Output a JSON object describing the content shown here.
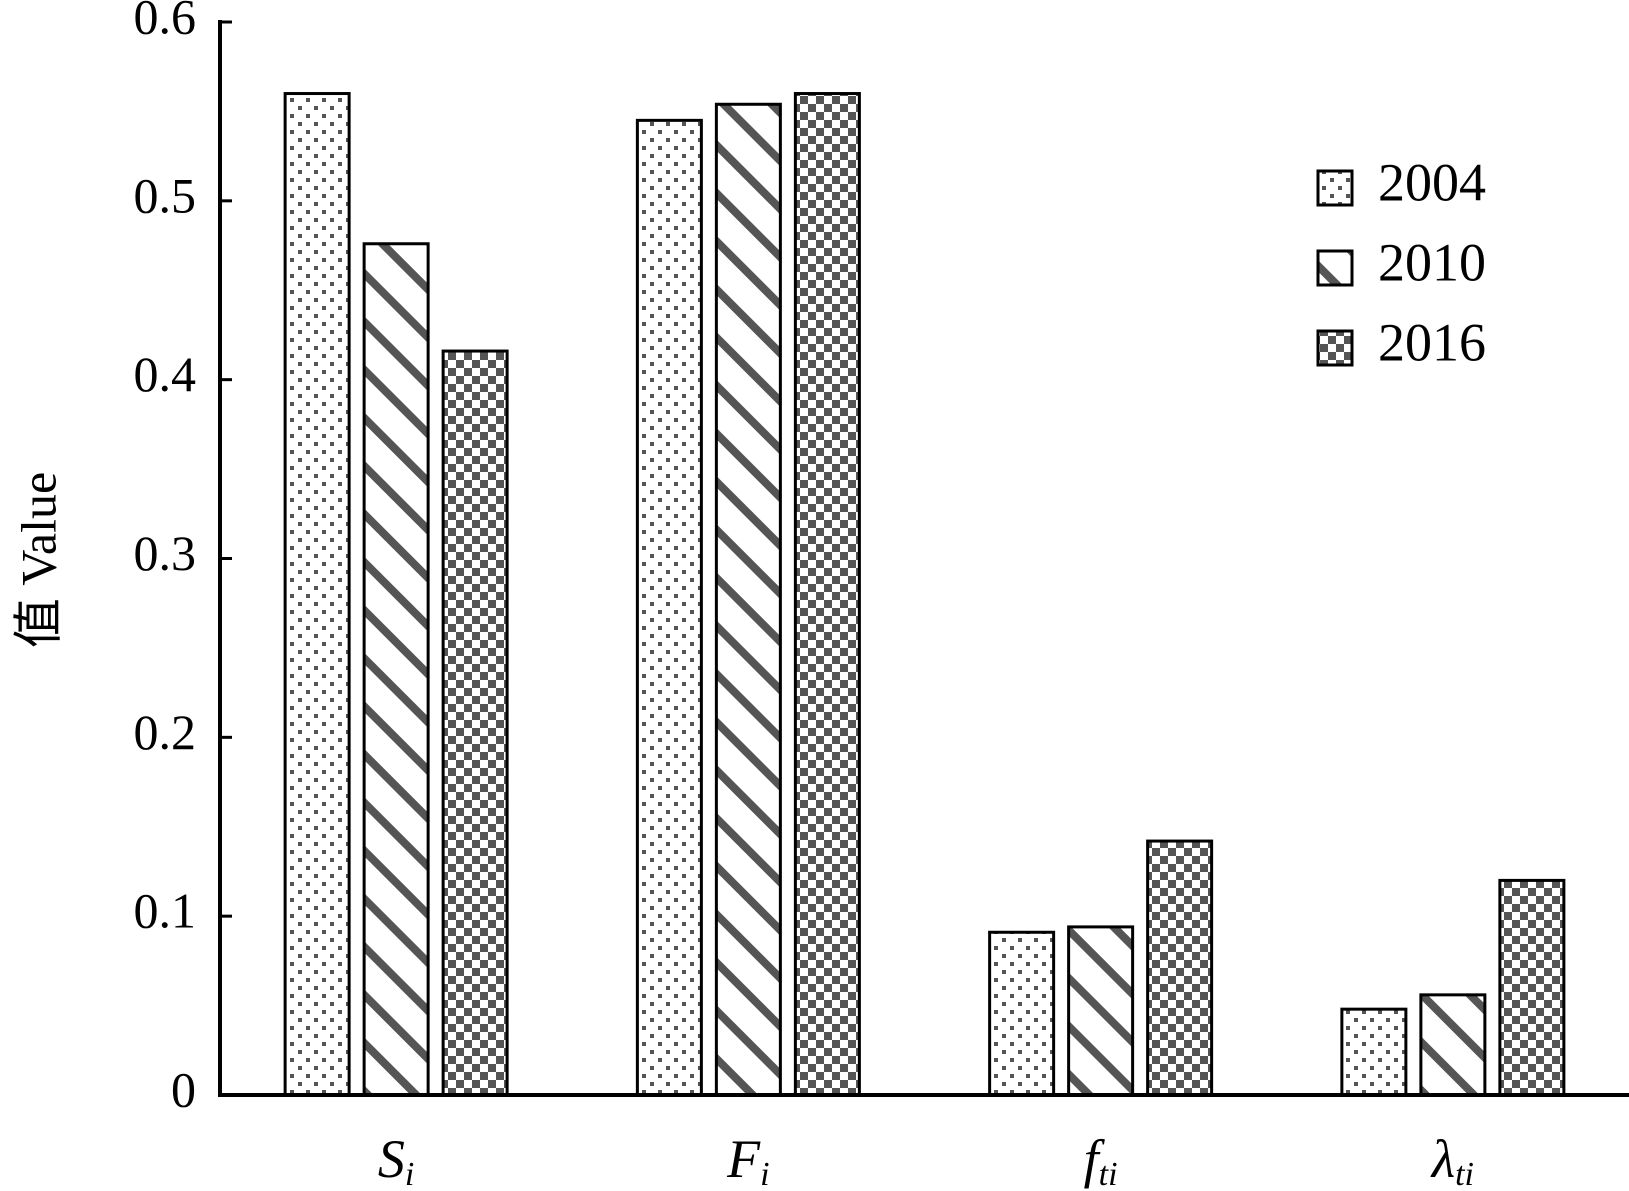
{
  "chart_data": {
    "type": "bar",
    "y_label": "值 Value",
    "categories": [
      {
        "base": "S",
        "sub": "i"
      },
      {
        "base": "F",
        "sub": "i"
      },
      {
        "base": "f",
        "sub": "ti"
      },
      {
        "base": "λ",
        "sub": "ti"
      }
    ],
    "series": [
      {
        "name": "2004",
        "color": "#555555",
        "pattern": "dots",
        "values": [
          0.56,
          0.545,
          0.091,
          0.048
        ]
      },
      {
        "name": "2010",
        "color": "#555555",
        "pattern": "stripes",
        "values": [
          0.476,
          0.554,
          0.094,
          0.056
        ]
      },
      {
        "name": "2016",
        "color": "#555555",
        "pattern": "checker",
        "values": [
          0.416,
          0.56,
          0.142,
          0.12
        ]
      }
    ],
    "ylim": [
      0,
      0.6
    ],
    "yticks": [
      0,
      0.1,
      0.2,
      0.3,
      0.4,
      0.5,
      0.6
    ],
    "grid": false,
    "legend": "upper right"
  }
}
